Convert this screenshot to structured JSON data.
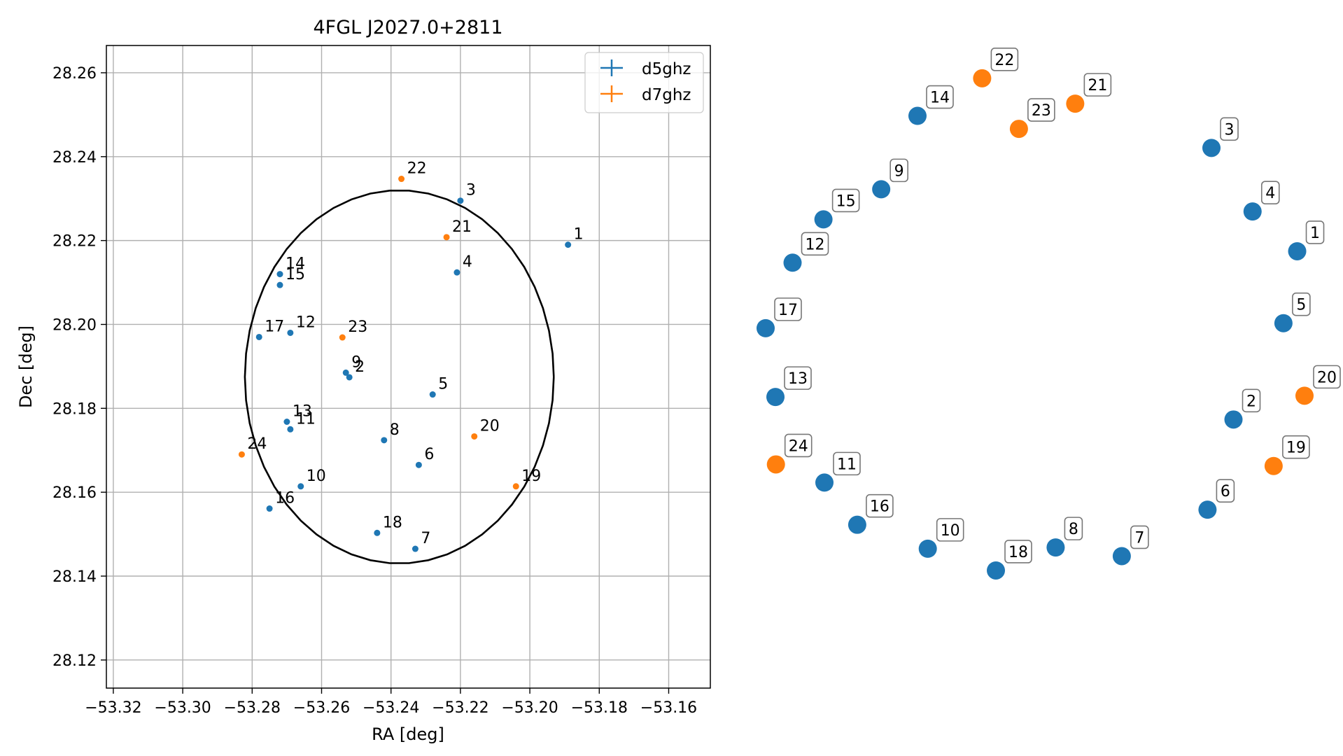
{
  "chart_data": [
    {
      "type": "scatter",
      "title": "4FGL J2027.0+2811",
      "xlabel": "RA [deg]",
      "ylabel": "Dec [deg]",
      "xlim": [
        -53.322,
        -53.148
      ],
      "ylim": [
        28.1133,
        28.2665
      ],
      "grid": true,
      "legend_position": "top-right",
      "xticks": [
        -53.32,
        -53.3,
        -53.28,
        -53.26,
        -53.24,
        -53.22,
        -53.2,
        -53.18,
        -53.16
      ],
      "yticks": [
        28.12,
        28.14,
        28.16,
        28.18,
        28.2,
        28.22,
        28.24,
        28.26
      ],
      "xtick_labels": [
        "−53.32",
        "−53.30",
        "−53.28",
        "−53.26",
        "−53.24",
        "−53.22",
        "−53.20",
        "−53.18",
        "−53.16"
      ],
      "ytick_labels": [
        "28.12",
        "28.14",
        "28.16",
        "28.18",
        "28.20",
        "28.22",
        "28.24",
        "28.26"
      ],
      "circle": {
        "center": [
          -53.2376,
          28.1875
        ],
        "radius_deg": 0.0445,
        "color": "#000000"
      },
      "series": [
        {
          "name": "d5ghz",
          "color": "#1f77b4",
          "points": [
            {
              "label": "1",
              "x": -53.189,
              "y": 28.219
            },
            {
              "label": "2",
              "x": -53.252,
              "y": 28.1874
            },
            {
              "label": "3",
              "x": -53.22,
              "y": 28.2295
            },
            {
              "label": "4",
              "x": -53.221,
              "y": 28.2124
            },
            {
              "label": "5",
              "x": -53.228,
              "y": 28.1833
            },
            {
              "label": "6",
              "x": -53.232,
              "y": 28.1665
            },
            {
              "label": "7",
              "x": -53.233,
              "y": 28.1465
            },
            {
              "label": "8",
              "x": -53.242,
              "y": 28.1724
            },
            {
              "label": "9",
              "x": -53.253,
              "y": 28.1885
            },
            {
              "label": "10",
              "x": -53.266,
              "y": 28.1614
            },
            {
              "label": "11",
              "x": -53.269,
              "y": 28.175
            },
            {
              "label": "12",
              "x": -53.269,
              "y": 28.198
            },
            {
              "label": "13",
              "x": -53.27,
              "y": 28.1768
            },
            {
              "label": "14",
              "x": -53.272,
              "y": 28.212
            },
            {
              "label": "15",
              "x": -53.272,
              "y": 28.2094
            },
            {
              "label": "16",
              "x": -53.275,
              "y": 28.1561
            },
            {
              "label": "17",
              "x": -53.278,
              "y": 28.197
            },
            {
              "label": "18",
              "x": -53.244,
              "y": 28.1503
            }
          ]
        },
        {
          "name": "d7ghz",
          "color": "#ff7f0e",
          "points": [
            {
              "label": "19",
              "x": -53.204,
              "y": 28.1614
            },
            {
              "label": "20",
              "x": -53.216,
              "y": 28.1733
            },
            {
              "label": "21",
              "x": -53.224,
              "y": 28.2208
            },
            {
              "label": "22",
              "x": -53.237,
              "y": 28.2347
            },
            {
              "label": "23",
              "x": -53.254,
              "y": 28.1969
            },
            {
              "label": "24",
              "x": -53.283,
              "y": 28.169
            }
          ]
        }
      ]
    },
    {
      "type": "scatter",
      "title": "",
      "axes_visible": false,
      "xlim": [
        0,
        1
      ],
      "ylim": [
        0,
        1
      ],
      "points": [
        {
          "label": "1",
          "series": "d5ghz",
          "x": 0.9864,
          "y": 0.6943
        },
        {
          "label": "2",
          "series": "d5ghz",
          "x": 0.8682,
          "y": 0.4061
        },
        {
          "label": "3",
          "series": "d5ghz",
          "x": 0.8273,
          "y": 0.8713
        },
        {
          "label": "4",
          "series": "d5ghz",
          "x": 0.9036,
          "y": 0.7624
        },
        {
          "label": "5",
          "series": "d5ghz",
          "x": 0.9609,
          "y": 0.5711
        },
        {
          "label": "6",
          "series": "d5ghz",
          "x": 0.82,
          "y": 0.2516
        },
        {
          "label": "7",
          "series": "d5ghz",
          "x": 0.6609,
          "y": 0.1721
        },
        {
          "label": "8",
          "series": "d5ghz",
          "x": 0.5382,
          "y": 0.1869
        },
        {
          "label": "9",
          "series": "d5ghz",
          "x": 0.2145,
          "y": 0.8005
        },
        {
          "label": "10",
          "series": "d5ghz",
          "x": 0.3009,
          "y": 0.1848
        },
        {
          "label": "11",
          "series": "d5ghz",
          "x": 0.1091,
          "y": 0.2981
        },
        {
          "label": "12",
          "series": "d5ghz",
          "x": 0.05,
          "y": 0.6747
        },
        {
          "label": "13",
          "series": "d5ghz",
          "x": 0.0182,
          "y": 0.4447
        },
        {
          "label": "14",
          "series": "d5ghz",
          "x": 0.2818,
          "y": 0.9262
        },
        {
          "label": "15",
          "series": "d5ghz",
          "x": 0.1073,
          "y": 0.7489
        },
        {
          "label": "16",
          "series": "d5ghz",
          "x": 0.17,
          "y": 0.2258
        },
        {
          "label": "17",
          "series": "d5ghz",
          "x": 0.0,
          "y": 0.5625
        },
        {
          "label": "18",
          "series": "d5ghz",
          "x": 0.4273,
          "y": 0.1475
        },
        {
          "label": "19",
          "series": "d7ghz",
          "x": 0.9427,
          "y": 0.3265
        },
        {
          "label": "20",
          "series": "d7ghz",
          "x": 1.0,
          "y": 0.4468
        },
        {
          "label": "21",
          "series": "d7ghz",
          "x": 0.5745,
          "y": 0.9471
        },
        {
          "label": "22",
          "series": "d7ghz",
          "x": 0.4018,
          "y": 0.9906
        },
        {
          "label": "23",
          "series": "d7ghz",
          "x": 0.47,
          "y": 0.904
        },
        {
          "label": "24",
          "series": "d7ghz",
          "x": 0.0191,
          "y": 0.3292
        }
      ]
    }
  ]
}
